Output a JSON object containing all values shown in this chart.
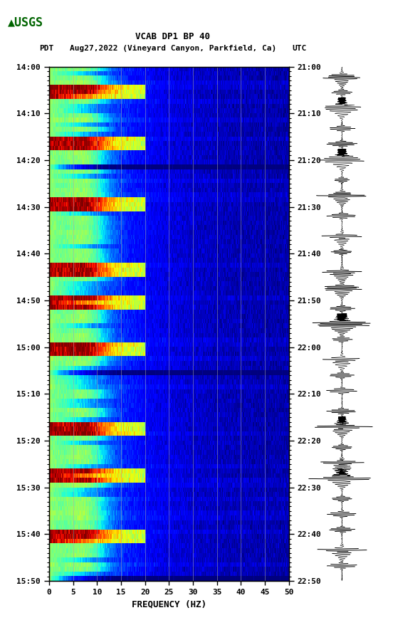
{
  "title_line1": "VCAB DP1 BP 40",
  "title_line2_pdt": "PDT",
  "title_line2_mid": "Aug27,2022 (Vineyard Canyon, Parkfield, Ca)",
  "title_line2_utc": "UTC",
  "xlabel": "FREQUENCY (HZ)",
  "freq_min": 0,
  "freq_max": 50,
  "freq_ticks": [
    0,
    5,
    10,
    15,
    20,
    25,
    30,
    35,
    40,
    45,
    50
  ],
  "time_labels_pdt": [
    "14:00",
    "14:10",
    "14:20",
    "14:30",
    "14:40",
    "14:50",
    "15:00",
    "15:10",
    "15:20",
    "15:30",
    "15:40",
    "15:50"
  ],
  "time_labels_utc": [
    "21:00",
    "21:10",
    "21:20",
    "21:30",
    "21:40",
    "21:50",
    "22:00",
    "22:10",
    "22:20",
    "22:30",
    "22:40",
    "22:50"
  ],
  "n_time_steps": 110,
  "n_freq_steps": 400,
  "background_color": "#ffffff",
  "spectrogram_colormap": "jet",
  "vertical_line_freqs": [
    5,
    10,
    15,
    20,
    25,
    30,
    35,
    40,
    45
  ],
  "vertical_line_color": "#aaaaaa",
  "vertical_line_alpha": 0.6,
  "fig_width": 5.52,
  "fig_height": 8.92,
  "usgs_color": "#006400",
  "event_times": [
    2,
    5,
    9,
    13,
    16,
    19,
    23,
    26,
    29,
    33,
    36,
    40,
    43,
    47,
    50,
    53,
    57,
    60,
    63,
    67,
    70,
    74,
    77,
    80,
    84,
    87,
    90,
    94,
    97,
    100,
    104,
    107
  ],
  "wave_event_times": [
    0.02,
    0.05,
    0.08,
    0.12,
    0.15,
    0.18,
    0.22,
    0.25,
    0.29,
    0.33,
    0.36,
    0.4,
    0.43,
    0.47,
    0.5,
    0.53,
    0.57,
    0.6,
    0.63,
    0.67,
    0.7,
    0.74,
    0.77,
    0.8,
    0.84,
    0.87,
    0.9,
    0.94,
    0.97
  ]
}
